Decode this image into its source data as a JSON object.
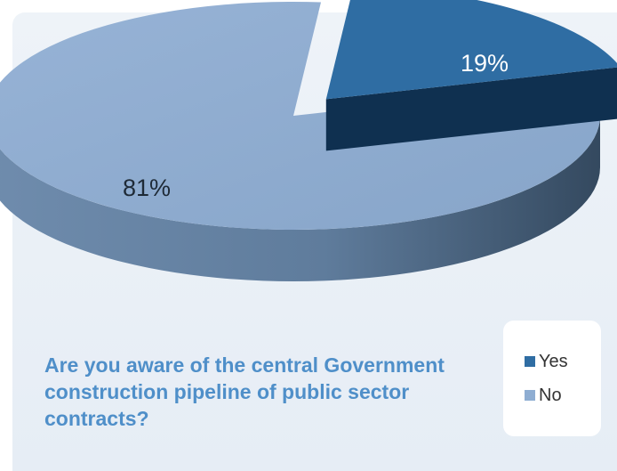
{
  "chart_data": {
    "type": "pie",
    "title": "Are you aware of the central Government construction pipeline of public sector contracts?",
    "slices": [
      {
        "label": "Yes",
        "value": 19,
        "value_label": "19%",
        "color": "#2f6da3"
      },
      {
        "label": "No",
        "value": 81,
        "value_label": "81%",
        "color": "#8eadd2"
      }
    ],
    "legend": {
      "placement": "bottom-right",
      "items": [
        {
          "label": "Yes",
          "color": "#2f6da3"
        },
        {
          "label": "No",
          "color": "#8eadd2"
        }
      ]
    }
  }
}
